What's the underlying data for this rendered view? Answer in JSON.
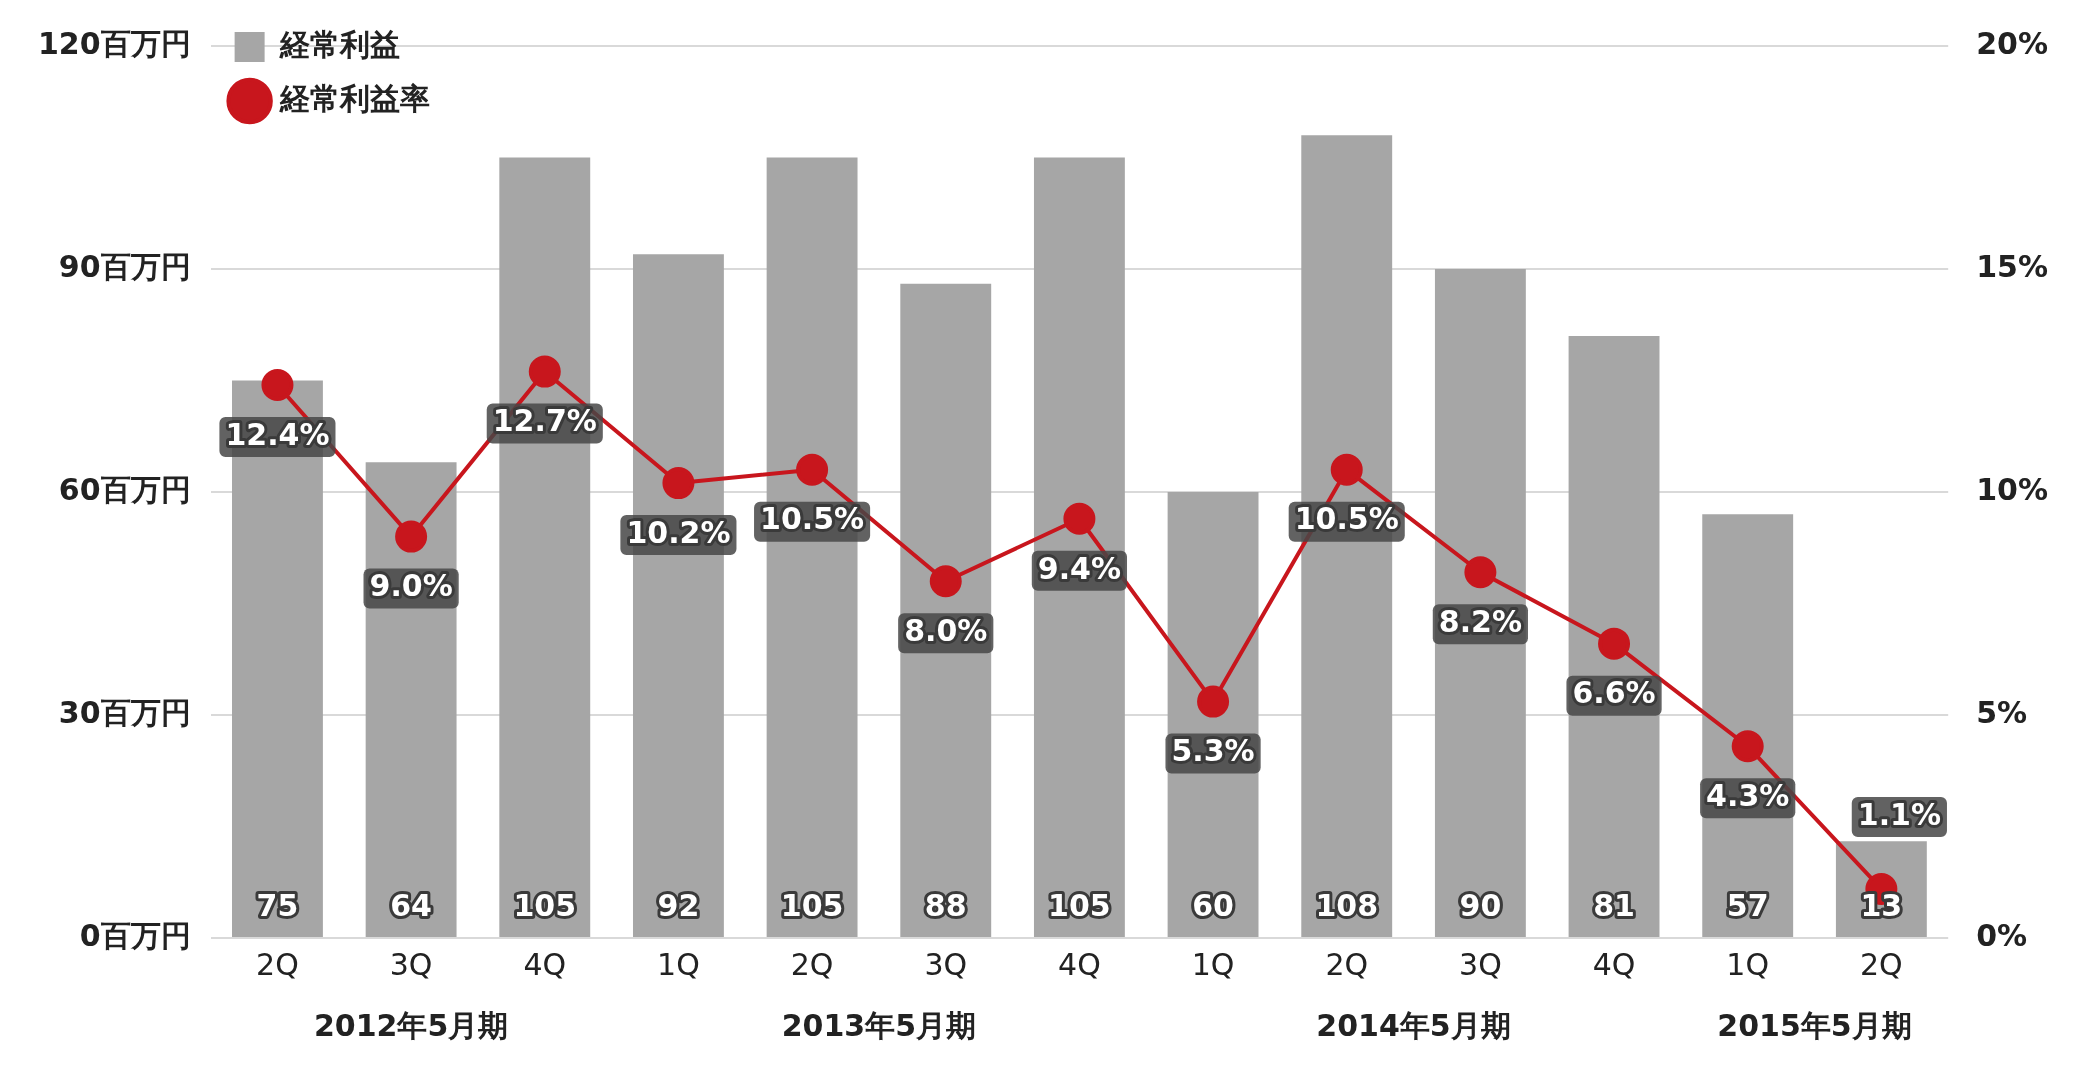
{
  "chart_data": {
    "type": "bar",
    "categories": [
      "2Q",
      "3Q",
      "4Q",
      "1Q",
      "2Q",
      "3Q",
      "4Q",
      "1Q",
      "2Q",
      "3Q",
      "4Q",
      "1Q",
      "2Q"
    ],
    "series": [
      {
        "name": "経常利益",
        "color": "#a6a6a6",
        "values": [
          75,
          64,
          105,
          92,
          105,
          88,
          105,
          60,
          108,
          90,
          81,
          57,
          13
        ]
      },
      {
        "name": "経常利益率",
        "type": "line",
        "axis": "y2",
        "color": "#c8161d",
        "marker": "circle",
        "values": [
          12.4,
          9.0,
          12.7,
          10.2,
          10.5,
          8.0,
          9.4,
          5.3,
          10.5,
          8.2,
          6.6,
          4.3,
          1.1
        ],
        "value_labels": [
          "12.4%",
          "9.0%",
          "12.7%",
          "10.2%",
          "10.5%",
          "8.0%",
          "9.4%",
          "5.3%",
          "10.5%",
          "8.2%",
          "6.6%",
          "4.3%",
          "1.1%"
        ]
      }
    ],
    "ylim": [
      0,
      120
    ],
    "yticks": [
      {
        "value": 0,
        "label": "0百万円"
      },
      {
        "value": 30,
        "label": "30百万円"
      },
      {
        "value": 60,
        "label": "60百万円"
      },
      {
        "value": 90,
        "label": "90百万円"
      },
      {
        "value": 120,
        "label": "120百万円"
      }
    ],
    "y2lim": [
      0,
      20
    ],
    "y2ticks": [
      {
        "value": 0,
        "label": "0%"
      },
      {
        "value": 5,
        "label": "5%"
      },
      {
        "value": 10,
        "label": "10%"
      },
      {
        "value": 15,
        "label": "15%"
      },
      {
        "value": 20,
        "label": "20%"
      }
    ],
    "data_labels": true,
    "grid": "y",
    "legend": "top left",
    "annotations": [
      "2012年5月期",
      "2013年5月期",
      "2014年5月期",
      "2015年5月期"
    ]
  }
}
